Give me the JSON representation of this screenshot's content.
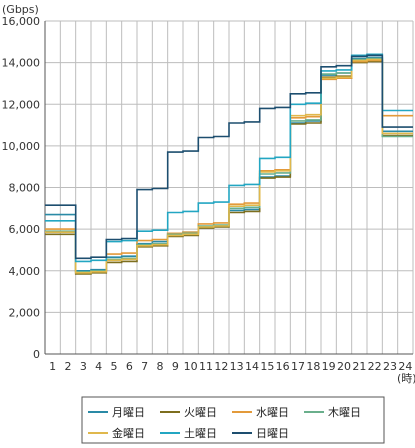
{
  "chart_data": {
    "type": "line",
    "step": true,
    "y_unit": "(Gbps)",
    "x_unit": "(時)",
    "x": [
      1,
      2,
      3,
      4,
      5,
      6,
      7,
      8,
      9,
      10,
      11,
      12,
      13,
      14,
      15,
      16,
      17,
      18,
      19,
      20,
      21,
      22,
      23,
      24
    ],
    "ylim": [
      0,
      16000
    ],
    "yticks": [
      "0",
      "2,000",
      "4,000",
      "6,000",
      "8,000",
      "10,000",
      "12,000",
      "14,000",
      "16,000"
    ],
    "grid": true,
    "legend_position": "bottom",
    "series": [
      {
        "name": "月曜日",
        "color": "#2a8aa6",
        "values": [
          6700,
          6700,
          4000,
          4050,
          4650,
          4700,
          5300,
          5400,
          5800,
          5850,
          6100,
          6150,
          6900,
          6950,
          8500,
          8550,
          11100,
          11200,
          13400,
          13500,
          14200,
          14250,
          10700,
          10700
        ]
      },
      {
        "name": "火曜日",
        "color": "#7d6e1e",
        "values": [
          5750,
          5750,
          3850,
          3900,
          4400,
          4450,
          5150,
          5200,
          5650,
          5700,
          6050,
          6100,
          6800,
          6850,
          8450,
          8500,
          11050,
          11100,
          13300,
          13350,
          14000,
          14050,
          10500,
          10500
        ]
      },
      {
        "name": "水曜日",
        "color": "#e39a3a",
        "values": [
          6000,
          6000,
          3950,
          4000,
          4800,
          4850,
          5450,
          5500,
          5800,
          5850,
          6250,
          6300,
          7200,
          7250,
          8800,
          8850,
          11350,
          11400,
          13200,
          13250,
          14050,
          14100,
          11450,
          11450
        ]
      },
      {
        "name": "木曜日",
        "color": "#6aaf8c",
        "values": [
          5900,
          5900,
          3950,
          4000,
          4550,
          4600,
          5250,
          5300,
          5750,
          5800,
          6150,
          6200,
          7000,
          7050,
          8650,
          8700,
          11200,
          11250,
          13450,
          13500,
          14150,
          14200,
          10450,
          10450
        ]
      },
      {
        "name": "金曜日",
        "color": "#e0b84c",
        "values": [
          5850,
          5850,
          3900,
          3950,
          4500,
          4550,
          5200,
          5250,
          5700,
          5750,
          6100,
          6150,
          7100,
          7150,
          8750,
          8800,
          11450,
          11500,
          13250,
          13300,
          14100,
          14150,
          10600,
          10600
        ]
      },
      {
        "name": "土曜日",
        "color": "#23a6c2",
        "values": [
          6400,
          6400,
          4450,
          4500,
          5400,
          5450,
          5900,
          5950,
          6800,
          6850,
          7250,
          7300,
          8100,
          8150,
          9400,
          9450,
          12000,
          12050,
          13600,
          13650,
          14350,
          14400,
          11700,
          11700
        ]
      },
      {
        "name": "日曜日",
        "color": "#1d4e6f",
        "values": [
          7150,
          7150,
          4600,
          4650,
          5500,
          5550,
          7900,
          7950,
          9700,
          9750,
          10400,
          10450,
          11100,
          11150,
          11800,
          11850,
          12500,
          12550,
          13800,
          13850,
          14300,
          14350,
          10900,
          10900
        ]
      }
    ]
  }
}
